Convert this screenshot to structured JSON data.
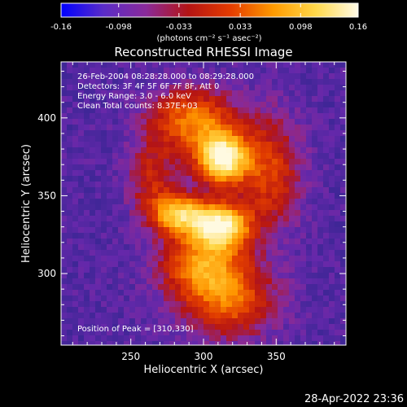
{
  "colorbar": {
    "ticks": [
      "-0.16",
      "-0.098",
      "-0.033",
      "0.033",
      "0.098",
      "0.16"
    ],
    "tick_values": [
      -0.16,
      -0.098,
      -0.033,
      0.033,
      0.098,
      0.16
    ],
    "range": [
      -0.16,
      0.16
    ],
    "units_line": "(photons cm⁻² s⁻¹ asec⁻²)",
    "gradient_colors": [
      "#0000ff",
      "#5a2cc8",
      "#8a2a9a",
      "#b41414",
      "#e53c00",
      "#ff9a00",
      "#ffd84a",
      "#fffbe8"
    ]
  },
  "chart_data": {
    "type": "heatmap",
    "title": "Reconstructed RHESSI Image",
    "xlabel": "Heliocentric X (arcsec)",
    "ylabel": "Heliocentric Y (arcsec)",
    "xlim": [
      202,
      398
    ],
    "ylim": [
      254,
      436
    ],
    "x_ticks": [
      250,
      300,
      350
    ],
    "y_ticks": [
      300,
      350,
      400
    ],
    "annotations": [
      "26-Feb-2004 08:28:28.000 to 08:29:28.000",
      "Detectors: 3F 4F 5F 6F 7F 8F, Att 0",
      "Energy Range: 3.0 - 6.0 keV",
      "Clean     Total counts: 8.37E+03"
    ],
    "peak_label": "Position of Peak = [310,330]",
    "sources": [
      {
        "x": 313,
        "y": 374,
        "peak": 1.0,
        "sigma_x": 12,
        "sigma_y": 11
      },
      {
        "x": 311,
        "y": 331,
        "peak": 0.95,
        "sigma_x": 14,
        "sigma_y": 10
      },
      {
        "x": 283,
        "y": 338,
        "peak": 0.7,
        "sigma_x": 12,
        "sigma_y": 9
      },
      {
        "x": 293,
        "y": 398,
        "peak": 0.55,
        "sigma_x": 20,
        "sigma_y": 14
      },
      {
        "x": 300,
        "y": 305,
        "peak": 0.55,
        "sigma_x": 20,
        "sigma_y": 14
      },
      {
        "x": 345,
        "y": 365,
        "peak": 0.4,
        "sigma_x": 15,
        "sigma_y": 25
      },
      {
        "x": 318,
        "y": 282,
        "peak": 0.45,
        "sigma_x": 22,
        "sigma_y": 16
      },
      {
        "x": 265,
        "y": 360,
        "peak": 0.3,
        "sigma_x": 12,
        "sigma_y": 18
      }
    ]
  },
  "footer": {
    "timestamp": "28-Apr-2022 23:36"
  }
}
